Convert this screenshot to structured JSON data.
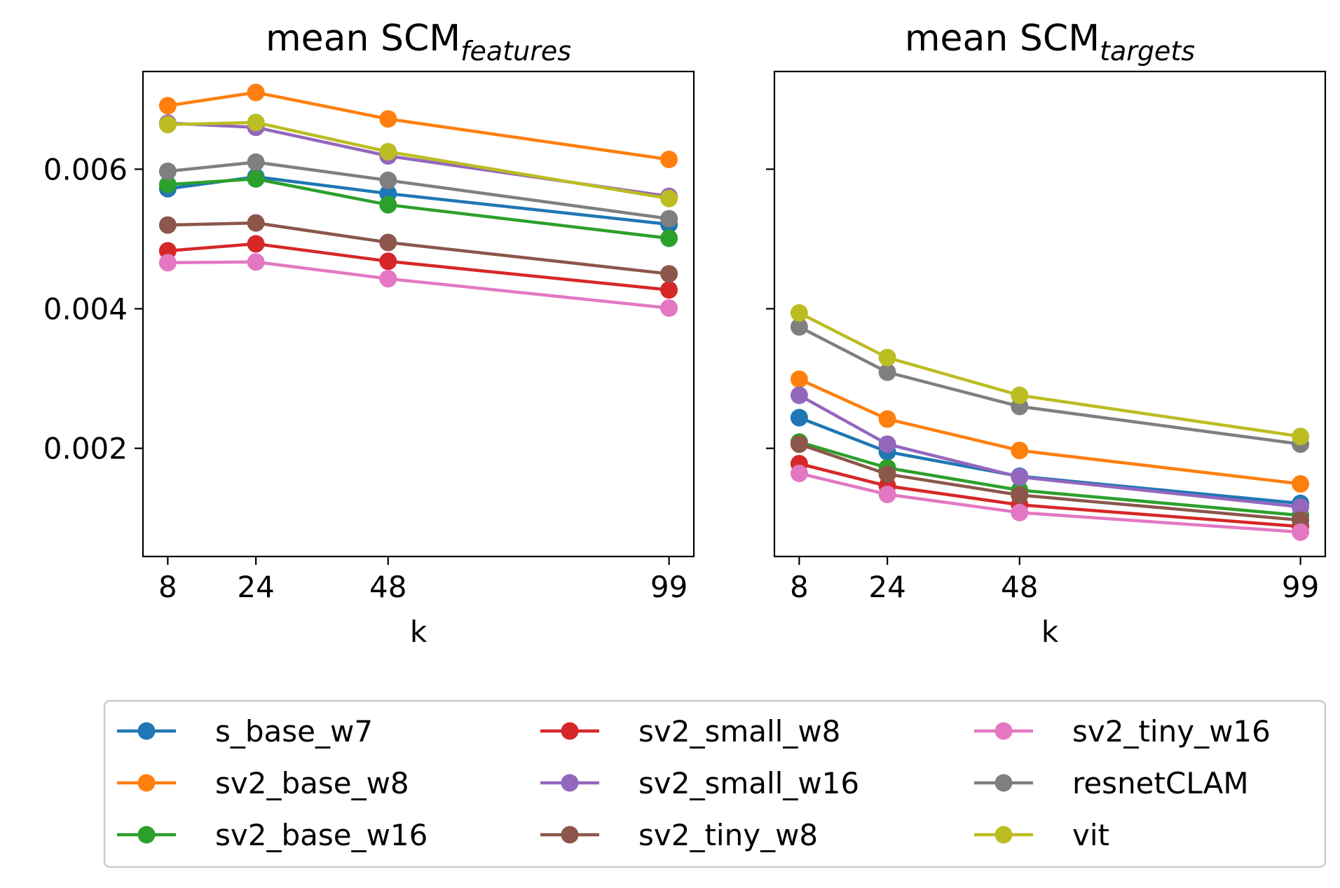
{
  "chart_data": [
    {
      "type": "line",
      "title": "mean SCM",
      "title_subscript": "features",
      "xlabel": "k",
      "ylabel": "",
      "x": [
        8,
        24,
        48,
        99
      ],
      "x_ticks": [
        "8",
        "24",
        "48",
        "99"
      ],
      "y_ticks": [
        "0.002",
        "0.004",
        "0.006"
      ],
      "y_tick_values": [
        0.002,
        0.004,
        0.006
      ],
      "ylim": [
        0.00045,
        0.0074
      ],
      "xlim": [
        3.5,
        103.5
      ],
      "series": [
        {
          "name": "s_base_w7",
          "values": [
            0.00572,
            0.00589,
            0.00565,
            0.00521
          ]
        },
        {
          "name": "sv2_base_w8",
          "values": [
            0.00691,
            0.0071,
            0.00672,
            0.00614
          ]
        },
        {
          "name": "sv2_base_w16",
          "values": [
            0.00578,
            0.00586,
            0.00549,
            0.00501
          ]
        },
        {
          "name": "sv2_small_w8",
          "values": [
            0.00483,
            0.00493,
            0.00468,
            0.00427
          ]
        },
        {
          "name": "sv2_small_w16",
          "values": [
            0.00666,
            0.0066,
            0.00619,
            0.00561
          ]
        },
        {
          "name": "sv2_tiny_w8",
          "values": [
            0.0052,
            0.00523,
            0.00495,
            0.0045
          ]
        },
        {
          "name": "sv2_tiny_w16",
          "values": [
            0.00466,
            0.00467,
            0.00443,
            0.00401
          ]
        },
        {
          "name": "resnetCLAM",
          "values": [
            0.00597,
            0.0061,
            0.00584,
            0.00529
          ]
        },
        {
          "name": "vit",
          "values": [
            0.00664,
            0.00667,
            0.00625,
            0.00558
          ]
        }
      ]
    },
    {
      "type": "line",
      "title": "mean SCM",
      "title_subscript": "targets",
      "xlabel": "k",
      "ylabel": "",
      "x": [
        8,
        24,
        48,
        99
      ],
      "x_ticks": [
        "8",
        "24",
        "48",
        "99"
      ],
      "y_ticks": [
        "",
        "",
        ""
      ],
      "y_tick_values": [
        0.002,
        0.004,
        0.006
      ],
      "ylim": [
        0.00045,
        0.0074
      ],
      "xlim": [
        3.5,
        103.5
      ],
      "series": [
        {
          "name": "s_base_w7",
          "values": [
            0.00244,
            0.00195,
            0.0016,
            0.00121
          ]
        },
        {
          "name": "sv2_base_w8",
          "values": [
            0.00299,
            0.00242,
            0.00197,
            0.00149
          ]
        },
        {
          "name": "sv2_base_w16",
          "values": [
            0.00209,
            0.00172,
            0.0014,
            0.00104
          ]
        },
        {
          "name": "sv2_small_w8",
          "values": [
            0.00178,
            0.00146,
            0.00119,
            0.00088
          ]
        },
        {
          "name": "sv2_small_w16",
          "values": [
            0.00276,
            0.00206,
            0.00159,
            0.00116
          ]
        },
        {
          "name": "sv2_tiny_w8",
          "values": [
            0.00206,
            0.00163,
            0.00133,
            0.00097
          ]
        },
        {
          "name": "sv2_tiny_w16",
          "values": [
            0.00164,
            0.00134,
            0.00108,
            0.0008
          ]
        },
        {
          "name": "resnetCLAM",
          "values": [
            0.00374,
            0.00309,
            0.0026,
            0.00206
          ]
        },
        {
          "name": "vit",
          "values": [
            0.00394,
            0.0033,
            0.00276,
            0.00217
          ]
        }
      ]
    }
  ],
  "legend": {
    "items": [
      {
        "name": "s_base_w7",
        "color": "#1f77b4"
      },
      {
        "name": "sv2_base_w8",
        "color": "#ff7f0e"
      },
      {
        "name": "sv2_base_w16",
        "color": "#2ca02c"
      },
      {
        "name": "sv2_small_w8",
        "color": "#d62728"
      },
      {
        "name": "sv2_small_w16",
        "color": "#9467bd"
      },
      {
        "name": "sv2_tiny_w8",
        "color": "#8c564b"
      },
      {
        "name": "sv2_tiny_w16",
        "color": "#e377c2"
      },
      {
        "name": "resnetCLAM",
        "color": "#7f7f7f"
      },
      {
        "name": "vit",
        "color": "#bcbd22"
      }
    ]
  }
}
